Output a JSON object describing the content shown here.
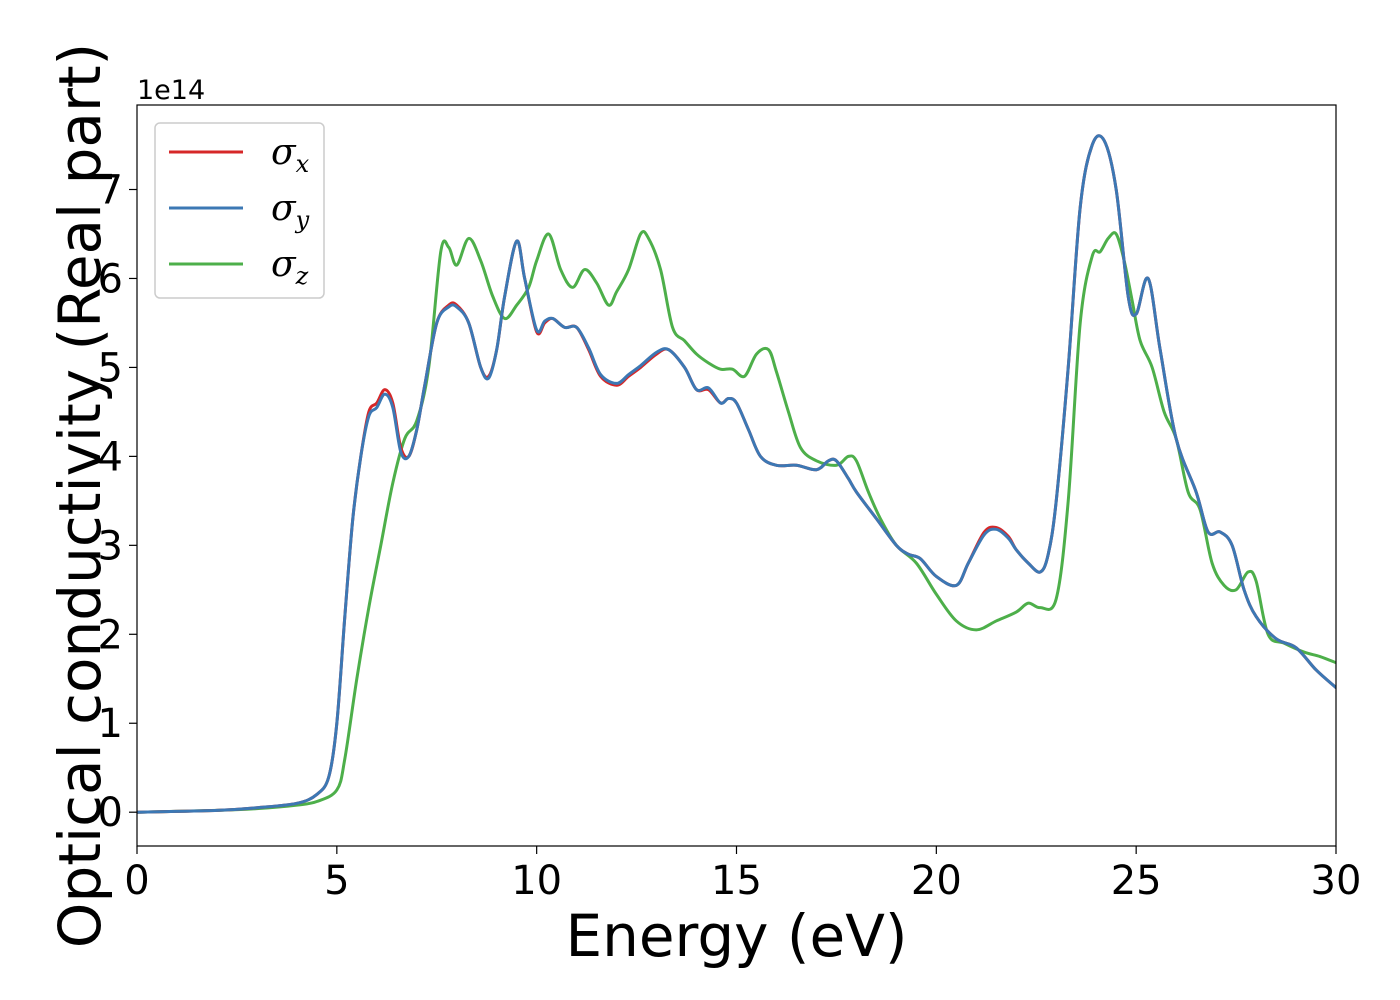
{
  "chart_data": {
    "type": "line",
    "xlabel": "Energy (eV)",
    "ylabel": "Optical conductivity (Real part)",
    "y_offset_label": "1e14",
    "xlim": [
      0,
      30
    ],
    "ylim": [
      -0.38,
      7.95
    ],
    "x_ticks": [
      0,
      5,
      10,
      15,
      20,
      25,
      30
    ],
    "y_ticks": [
      0,
      1,
      2,
      3,
      4,
      5,
      6,
      7
    ],
    "grid": false,
    "legend_position": "top-left",
    "series": [
      {
        "name": "σx",
        "name_base": "σ",
        "name_sub": "x",
        "color": "#d62728",
        "x": [
          0,
          2,
          3,
          4,
          4.5,
          4.8,
          5.0,
          5.2,
          5.4,
          5.6,
          5.8,
          6.0,
          6.2,
          6.4,
          6.6,
          6.8,
          7.0,
          7.2,
          7.5,
          7.8,
          8.0,
          8.3,
          8.6,
          8.8,
          9.0,
          9.2,
          9.5,
          9.7,
          10.0,
          10.2,
          10.4,
          10.7,
          11.0,
          11.3,
          11.6,
          12.0,
          12.3,
          12.6,
          13.0,
          13.3,
          13.7,
          14.0,
          14.3,
          14.6,
          14.8,
          15.0,
          15.3,
          15.6,
          16.0,
          16.5,
          17.0,
          17.3,
          17.5,
          17.8,
          18.0,
          18.5,
          19.0,
          19.3,
          19.6,
          20.0,
          20.5,
          20.8,
          21.2,
          21.5,
          21.8,
          22.0,
          22.3,
          22.6,
          22.8,
          23.0,
          23.3,
          23.6,
          23.9,
          24.2,
          24.5,
          24.8,
          25.0,
          25.3,
          25.6,
          26.0,
          26.5,
          26.8,
          27.1,
          27.4,
          27.7,
          28.0,
          28.5,
          29.0,
          29.5,
          30.0
        ],
        "y": [
          0,
          0.02,
          0.05,
          0.1,
          0.2,
          0.4,
          1.0,
          2.2,
          3.3,
          4.0,
          4.5,
          4.6,
          4.75,
          4.6,
          4.1,
          4.0,
          4.3,
          4.8,
          5.5,
          5.7,
          5.7,
          5.5,
          5.0,
          4.9,
          5.2,
          5.8,
          6.42,
          6.0,
          5.4,
          5.5,
          5.55,
          5.45,
          5.45,
          5.2,
          4.9,
          4.8,
          4.9,
          5.0,
          5.15,
          5.2,
          5.0,
          4.75,
          4.75,
          4.6,
          4.65,
          4.6,
          4.3,
          4.0,
          3.9,
          3.9,
          3.85,
          3.95,
          3.95,
          3.75,
          3.6,
          3.3,
          3.0,
          2.9,
          2.85,
          2.65,
          2.55,
          2.8,
          3.15,
          3.2,
          3.1,
          2.95,
          2.8,
          2.7,
          2.9,
          3.5,
          5.0,
          6.8,
          7.5,
          7.55,
          7.0,
          5.8,
          5.6,
          6.0,
          5.2,
          4.2,
          3.6,
          3.15,
          3.15,
          3.0,
          2.5,
          2.2,
          1.95,
          1.85,
          1.6,
          1.4
        ]
      },
      {
        "name": "σy",
        "name_base": "σ",
        "name_sub": "y",
        "color": "#3c78b4",
        "x": [
          0,
          2,
          3,
          4,
          4.5,
          4.8,
          5.0,
          5.2,
          5.4,
          5.6,
          5.8,
          6.0,
          6.2,
          6.4,
          6.6,
          6.8,
          7.0,
          7.2,
          7.5,
          7.8,
          8.0,
          8.3,
          8.6,
          8.8,
          9.0,
          9.2,
          9.5,
          9.7,
          10.0,
          10.2,
          10.4,
          10.7,
          11.0,
          11.3,
          11.6,
          12.0,
          12.3,
          12.6,
          13.0,
          13.3,
          13.7,
          14.0,
          14.3,
          14.6,
          14.8,
          15.0,
          15.3,
          15.6,
          16.0,
          16.5,
          17.0,
          17.3,
          17.5,
          17.8,
          18.0,
          18.5,
          19.0,
          19.3,
          19.6,
          20.0,
          20.5,
          20.8,
          21.2,
          21.5,
          21.8,
          22.0,
          22.3,
          22.6,
          22.8,
          23.0,
          23.3,
          23.6,
          23.9,
          24.2,
          24.5,
          24.8,
          25.0,
          25.3,
          25.6,
          26.0,
          26.5,
          26.8,
          27.1,
          27.4,
          27.7,
          28.0,
          28.5,
          29.0,
          29.5,
          30.0
        ],
        "y": [
          0,
          0.02,
          0.05,
          0.1,
          0.2,
          0.4,
          1.0,
          2.2,
          3.3,
          4.0,
          4.45,
          4.55,
          4.7,
          4.55,
          4.05,
          4.0,
          4.3,
          4.8,
          5.5,
          5.68,
          5.68,
          5.5,
          5.0,
          4.88,
          5.2,
          5.8,
          6.42,
          6.0,
          5.42,
          5.52,
          5.55,
          5.45,
          5.45,
          5.22,
          4.92,
          4.82,
          4.92,
          5.02,
          5.17,
          5.2,
          5.0,
          4.75,
          4.77,
          4.6,
          4.65,
          4.6,
          4.3,
          4.0,
          3.9,
          3.9,
          3.85,
          3.95,
          3.95,
          3.75,
          3.6,
          3.3,
          3.0,
          2.9,
          2.85,
          2.65,
          2.55,
          2.8,
          3.12,
          3.18,
          3.08,
          2.95,
          2.8,
          2.7,
          2.9,
          3.5,
          5.0,
          6.8,
          7.5,
          7.55,
          7.0,
          5.8,
          5.6,
          6.0,
          5.2,
          4.2,
          3.6,
          3.15,
          3.15,
          3.0,
          2.5,
          2.2,
          1.95,
          1.85,
          1.6,
          1.4
        ]
      },
      {
        "name": "σz",
        "name_base": "σ",
        "name_sub": "z",
        "color": "#4daf4a",
        "x": [
          0,
          2,
          3,
          4,
          4.5,
          5.0,
          5.2,
          5.5,
          5.8,
          6.1,
          6.4,
          6.7,
          7.0,
          7.3,
          7.6,
          7.8,
          8.0,
          8.3,
          8.6,
          8.9,
          9.2,
          9.5,
          9.8,
          10.0,
          10.3,
          10.6,
          10.9,
          11.2,
          11.5,
          11.8,
          12.0,
          12.3,
          12.6,
          12.8,
          13.1,
          13.4,
          13.7,
          14.0,
          14.3,
          14.6,
          14.9,
          15.2,
          15.5,
          15.8,
          16.0,
          16.3,
          16.6,
          17.0,
          17.5,
          17.8,
          18.0,
          18.3,
          18.6,
          19.0,
          19.5,
          20.0,
          20.5,
          21.0,
          21.5,
          22.0,
          22.3,
          22.6,
          23.0,
          23.3,
          23.6,
          23.9,
          24.1,
          24.3,
          24.5,
          24.7,
          24.9,
          25.1,
          25.4,
          25.7,
          26.0,
          26.3,
          26.6,
          26.9,
          27.2,
          27.5,
          27.8,
          28.0,
          28.3,
          28.7,
          29.2,
          29.6,
          30.0
        ],
        "y": [
          0,
          0.02,
          0.04,
          0.08,
          0.12,
          0.25,
          0.6,
          1.5,
          2.3,
          3.0,
          3.7,
          4.2,
          4.4,
          5.0,
          6.3,
          6.35,
          6.15,
          6.45,
          6.2,
          5.8,
          5.55,
          5.7,
          5.9,
          6.2,
          6.5,
          6.1,
          5.9,
          6.1,
          5.95,
          5.7,
          5.85,
          6.1,
          6.5,
          6.45,
          6.1,
          5.45,
          5.3,
          5.15,
          5.05,
          4.98,
          4.98,
          4.9,
          5.15,
          5.2,
          4.95,
          4.5,
          4.1,
          3.95,
          3.9,
          4.0,
          3.95,
          3.6,
          3.3,
          3.0,
          2.8,
          2.45,
          2.15,
          2.05,
          2.15,
          2.25,
          2.35,
          2.3,
          2.4,
          3.5,
          5.5,
          6.25,
          6.3,
          6.45,
          6.5,
          6.2,
          5.75,
          5.3,
          5.0,
          4.5,
          4.2,
          3.6,
          3.4,
          2.8,
          2.55,
          2.5,
          2.7,
          2.6,
          2.0,
          1.9,
          1.8,
          1.75,
          1.68
        ]
      }
    ]
  }
}
